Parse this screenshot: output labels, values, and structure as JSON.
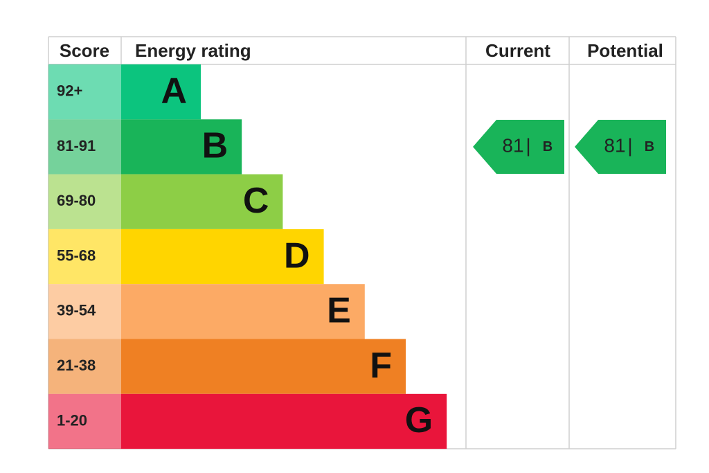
{
  "header": {
    "score": "Score",
    "rating": "Energy rating",
    "current": "Current",
    "potential": "Potential"
  },
  "bands": [
    {
      "score": "92+",
      "letter": "A",
      "color": "#0cc47e"
    },
    {
      "score": "81-91",
      "letter": "B",
      "color": "#19b459"
    },
    {
      "score": "69-80",
      "letter": "C",
      "color": "#8dce46"
    },
    {
      "score": "55-68",
      "letter": "D",
      "color": "#ffd500"
    },
    {
      "score": "39-54",
      "letter": "E",
      "color": "#fcaa65"
    },
    {
      "score": "21-38",
      "letter": "F",
      "color": "#ef8023"
    },
    {
      "score": "1-20",
      "letter": "G",
      "color": "#e9153b"
    }
  ],
  "current": {
    "score": 81,
    "separator": "|",
    "letter": "B"
  },
  "potential": {
    "score": 81,
    "separator": "|",
    "letter": "B"
  }
}
